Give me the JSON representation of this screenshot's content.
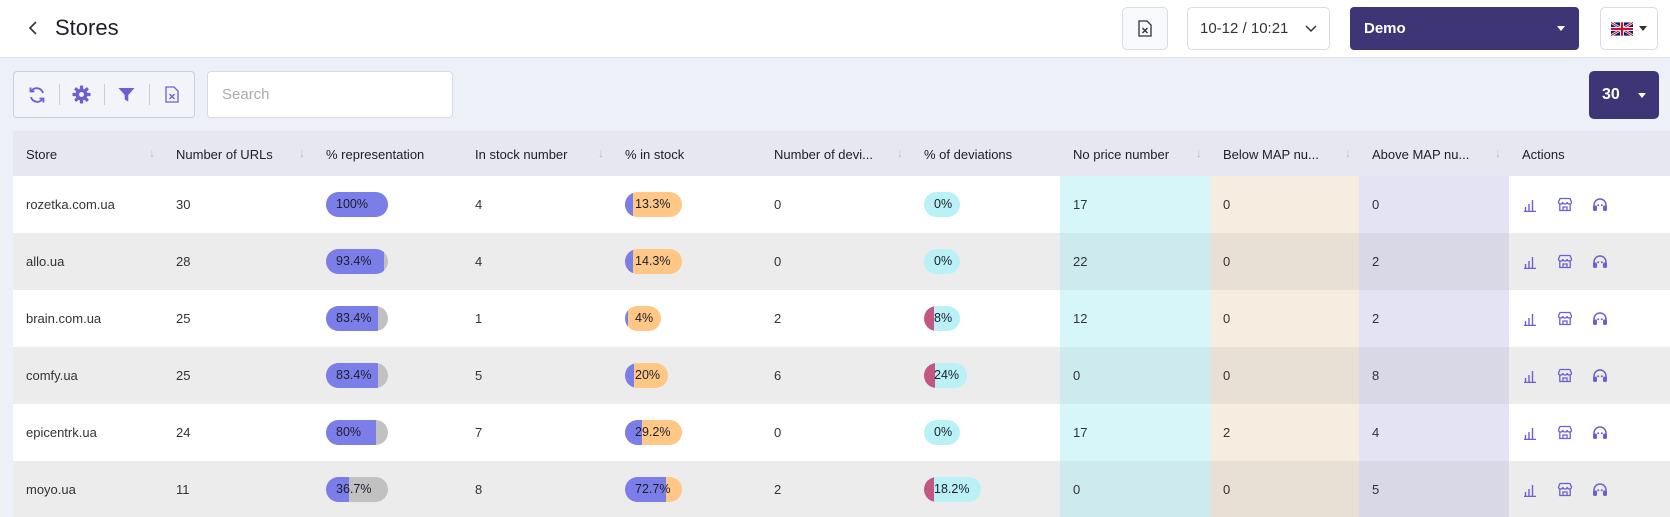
{
  "header": {
    "title": "Stores",
    "date_value": "10-12 / 10:21",
    "account": "Demo",
    "language_icon": "uk-flag-icon"
  },
  "toolbar": {
    "buttons": [
      "refresh-icon",
      "gear-icon",
      "filter-icon",
      "excel-export-icon"
    ],
    "search_placeholder": "Search",
    "page_size": "30"
  },
  "colors": {
    "primary": "#3e3577",
    "accent": "#7b7ee8",
    "representation_fill": "#7b7ee8",
    "stock_track": "#fec786",
    "deviation_fill": "#c3577f",
    "deviation_track": "#b9f1f7"
  },
  "table": {
    "columns": [
      "Store",
      "Number of URLs",
      "% representation",
      "In stock number",
      "% in stock",
      "Number of devi...",
      "% of deviations",
      "No price number",
      "Below MAP nu...",
      "Above MAP nu...",
      "Actions"
    ],
    "rows": [
      {
        "store": "rozetka.com.ua",
        "urls": "30",
        "rep": "100%",
        "rep_pct": 100,
        "instock": "4",
        "stock_pct_label": "13.3%",
        "stock_pct": 13.3,
        "devnum": "0",
        "dev_label": "0%",
        "dev_pct": 0,
        "noprice": "17",
        "below": "0",
        "above": "0"
      },
      {
        "store": "allo.ua",
        "urls": "28",
        "rep": "93.4%",
        "rep_pct": 93.4,
        "instock": "4",
        "stock_pct_label": "14.3%",
        "stock_pct": 14.3,
        "devnum": "0",
        "dev_label": "0%",
        "dev_pct": 0,
        "noprice": "22",
        "below": "0",
        "above": "2"
      },
      {
        "store": "brain.com.ua",
        "urls": "25",
        "rep": "83.4%",
        "rep_pct": 83.4,
        "instock": "1",
        "stock_pct_label": "4%",
        "stock_pct": 4,
        "devnum": "2",
        "dev_label": "8%",
        "dev_pct": 8,
        "noprice": "12",
        "below": "0",
        "above": "2"
      },
      {
        "store": "comfy.ua",
        "urls": "25",
        "rep": "83.4%",
        "rep_pct": 83.4,
        "instock": "5",
        "stock_pct_label": "20%",
        "stock_pct": 20,
        "devnum": "6",
        "dev_label": "24%",
        "dev_pct": 24,
        "noprice": "0",
        "below": "0",
        "above": "8"
      },
      {
        "store": "epicentrk.ua",
        "urls": "24",
        "rep": "80%",
        "rep_pct": 80,
        "instock": "7",
        "stock_pct_label": "29.2%",
        "stock_pct": 29.2,
        "devnum": "0",
        "dev_label": "0%",
        "dev_pct": 0,
        "noprice": "17",
        "below": "2",
        "above": "4"
      },
      {
        "store": "moyo.ua",
        "urls": "11",
        "rep": "36.7%",
        "rep_pct": 36.7,
        "instock": "8",
        "stock_pct_label": "72.7%",
        "stock_pct": 72.7,
        "devnum": "2",
        "dev_label": "18.2%",
        "dev_pct": 18.2,
        "noprice": "0",
        "below": "0",
        "above": "5"
      }
    ],
    "row_actions": [
      "chart-icon",
      "store-icon",
      "headset-icon"
    ]
  }
}
